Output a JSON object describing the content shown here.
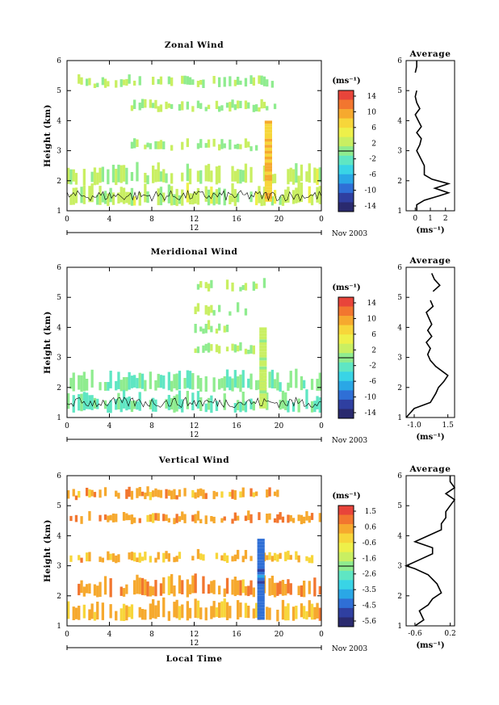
{
  "page_label": "",
  "shared": {
    "x_ticks": [
      "0",
      "4",
      "8",
      "12",
      "16",
      "20",
      "0"
    ],
    "y_ticks": [
      "1",
      "2",
      "3",
      "4",
      "5",
      "6"
    ],
    "date_bar_label": "12",
    "date_label": "Nov 2003",
    "x_axis_label": "Local Time",
    "y_axis_label": "Height (km)",
    "avg_unit_label": "(ms⁻¹)",
    "cbar_unit_label": "(ms⁻¹)"
  },
  "chart_data": [
    {
      "type": "heatmap",
      "title": "Zonal Wind",
      "xlabel": "",
      "ylabel": "Height (km)",
      "xlim": [
        0,
        24
      ],
      "ylim": [
        1,
        6
      ],
      "colorbar": {
        "unit": "(ms⁻¹)",
        "ticks": [
          "14",
          "10",
          "6",
          "2",
          "-2",
          "-6",
          "-10",
          "-14"
        ],
        "range": [
          -16,
          16
        ]
      },
      "layers": [
        {
          "height": 1.5,
          "t_start": 0,
          "t_end": 24,
          "typical_value": 2
        },
        {
          "height": 2.2,
          "t_start": 0,
          "t_end": 24,
          "typical_value": 2
        },
        {
          "height": 3.2,
          "t_start": 6,
          "t_end": 18,
          "typical_value": 1
        },
        {
          "height": 4.5,
          "t_start": 6,
          "t_end": 20,
          "typical_value": 1
        },
        {
          "height": 5.3,
          "t_start": 1,
          "t_end": 20,
          "typical_value": 1
        }
      ],
      "feature": {
        "t": 19,
        "h_bottom": 1.3,
        "h_top": 4.0,
        "value": 8
      },
      "average_profile": {
        "title": "Average",
        "xlabel": "(ms⁻¹)",
        "x_ticks": [
          "0",
          "1",
          "2"
        ],
        "xlim": [
          -0.6,
          2.6
        ],
        "heights": [
          1.0,
          1.2,
          1.35,
          1.5,
          1.6,
          1.75,
          1.9,
          2.05,
          2.2,
          2.5,
          2.8,
          3.0,
          3.2,
          3.4,
          3.6,
          3.8,
          4.0,
          4.2,
          4.4,
          4.6,
          4.8,
          5.0,
          5.2,
          5.4,
          5.6,
          5.8,
          6.0
        ],
        "values": [
          0.1,
          0.1,
          0.6,
          1.6,
          2.2,
          1.3,
          2.2,
          1.1,
          0.6,
          0.6,
          0.3,
          0.1,
          0.3,
          0.4,
          0.1,
          0.4,
          0.2,
          0.0,
          0.3,
          0.1,
          0.0,
          0.1,
          null,
          null,
          0.0,
          0.1,
          0.1
        ]
      }
    },
    {
      "type": "heatmap",
      "title": "Meridional Wind",
      "xlabel": "",
      "ylabel": "Height (km)",
      "xlim": [
        0,
        24
      ],
      "ylim": [
        1,
        6
      ],
      "colorbar": {
        "unit": "(ms⁻¹)",
        "ticks": [
          "14",
          "10",
          "6",
          "2",
          "-2",
          "-6",
          "-10",
          "-14"
        ],
        "range": [
          -16,
          16
        ]
      },
      "layers": [
        {
          "height": 1.5,
          "t_start": 0,
          "t_end": 24,
          "typical_value": -1
        },
        {
          "height": 2.2,
          "t_start": 0,
          "t_end": 24,
          "typical_value": -1
        },
        {
          "height": 3.3,
          "t_start": 12,
          "t_end": 18,
          "typical_value": 1
        },
        {
          "height": 4.0,
          "t_start": 12,
          "t_end": 16,
          "typical_value": 1
        },
        {
          "height": 4.6,
          "t_start": 12,
          "t_end": 17,
          "typical_value": 1
        },
        {
          "height": 5.4,
          "t_start": 12,
          "t_end": 19,
          "typical_value": 1
        }
      ],
      "feature": {
        "t": 18.5,
        "h_bottom": 1.3,
        "h_top": 4.0,
        "value": 2
      },
      "average_profile": {
        "title": "Average",
        "xlabel": "(ms⁻¹)",
        "x_ticks": [
          "-1.0",
          "1.5"
        ],
        "xlim": [
          -1.6,
          2.0
        ],
        "heights": [
          1.0,
          1.3,
          1.5,
          1.8,
          2.0,
          2.2,
          2.4,
          2.5,
          2.7,
          2.9,
          3.1,
          3.3,
          3.5,
          3.7,
          3.9,
          4.1,
          4.3,
          4.5,
          4.7,
          4.9,
          5.0,
          5.2,
          5.4,
          5.6,
          5.8
        ],
        "values": [
          -1.6,
          -1.0,
          0.2,
          0.6,
          0.8,
          1.2,
          1.5,
          1.2,
          0.6,
          0.2,
          0.0,
          0.2,
          -0.1,
          0.3,
          0.0,
          0.3,
          0.1,
          -0.1,
          0.4,
          0.2,
          null,
          0.4,
          0.9,
          0.5,
          0.3
        ]
      }
    },
    {
      "type": "heatmap",
      "title": "Vertical Wind",
      "xlabel": "Local Time",
      "ylabel": "Height (km)",
      "xlim": [
        0,
        24
      ],
      "ylim": [
        1,
        6
      ],
      "colorbar": {
        "unit": "(ms⁻¹)",
        "ticks": [
          "1.5",
          "0.6",
          "-0.6",
          "-1.6",
          "-2.6",
          "-3.5",
          "-4.5",
          "-5.6"
        ],
        "range": [
          -6.0,
          2.0
        ]
      },
      "layers": [
        {
          "height": 1.5,
          "t_start": 0,
          "t_end": 24,
          "typical_value": 0.3
        },
        {
          "height": 2.3,
          "t_start": 0,
          "t_end": 24,
          "typical_value": 0.6
        },
        {
          "height": 3.3,
          "t_start": 0,
          "t_end": 24,
          "typical_value": 0.3
        },
        {
          "height": 4.6,
          "t_start": 0,
          "t_end": 24,
          "typical_value": 0.6
        },
        {
          "height": 5.4,
          "t_start": 0,
          "t_end": 20,
          "typical_value": 0.5
        }
      ],
      "feature": {
        "t": 18.3,
        "h_bottom": 1.2,
        "h_top": 3.9,
        "value": -4.5
      },
      "average_profile": {
        "title": "Average",
        "xlabel": "(ms⁻¹)",
        "x_ticks": [
          "-0.6",
          "0.2"
        ],
        "xlim": [
          -0.8,
          0.3
        ],
        "heights": [
          1.0,
          1.2,
          1.5,
          1.7,
          1.9,
          2.1,
          2.4,
          2.7,
          2.9,
          3.0,
          3.2,
          3.4,
          3.6,
          3.8,
          4.0,
          4.2,
          4.4,
          4.6,
          4.8,
          5.0,
          5.2,
          5.4,
          5.6,
          5.8,
          6.0
        ],
        "values": [
          -0.6,
          -0.4,
          -0.5,
          -0.3,
          -0.2,
          0.0,
          -0.1,
          -0.3,
          -0.6,
          -0.8,
          -0.5,
          -0.2,
          -0.2,
          -0.6,
          -0.3,
          0.0,
          0.0,
          0.1,
          0.1,
          0.2,
          0.3,
          0.1,
          0.3,
          0.2,
          0.2
        ]
      }
    }
  ]
}
